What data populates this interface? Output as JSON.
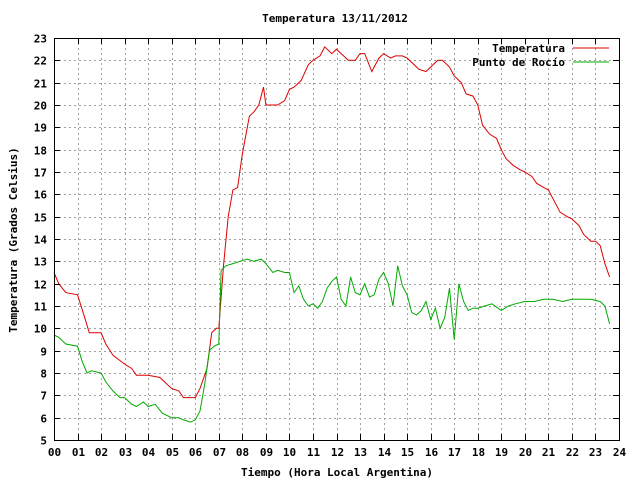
{
  "chart_data": {
    "type": "line",
    "title": "Temperatura 13/11/2012",
    "xlabel": "Tiempo (Hora Local Argentina)",
    "ylabel": "Temperatura (Grados Celsius)",
    "xlim": [
      0,
      24
    ],
    "ylim": [
      5,
      23
    ],
    "x_ticks": [
      "00",
      "01",
      "02",
      "03",
      "04",
      "05",
      "06",
      "07",
      "08",
      "09",
      "10",
      "11",
      "12",
      "13",
      "14",
      "15",
      "16",
      "17",
      "18",
      "19",
      "20",
      "21",
      "22",
      "23",
      "24"
    ],
    "y_ticks": [
      5,
      6,
      7,
      8,
      9,
      10,
      11,
      12,
      13,
      14,
      15,
      16,
      17,
      18,
      19,
      20,
      21,
      22,
      23
    ],
    "grid": true,
    "legend_position": "top-right",
    "series": [
      {
        "name": "Temperatura",
        "color": "#dd0000",
        "x": [
          0,
          0.2,
          0.5,
          1.0,
          1.3,
          1.5,
          2.0,
          2.2,
          2.5,
          3.0,
          3.3,
          3.5,
          4.0,
          4.5,
          5.0,
          5.3,
          5.5,
          5.8,
          6.0,
          6.2,
          6.5,
          6.7,
          6.9,
          7.0,
          7.2,
          7.4,
          7.6,
          7.8,
          8.0,
          8.3,
          8.5,
          8.7,
          8.9,
          9.0,
          9.2,
          9.5,
          9.8,
          10.0,
          10.2,
          10.5,
          10.8,
          11.0,
          11.3,
          11.5,
          11.8,
          12.0,
          12.2,
          12.5,
          12.8,
          13.0,
          13.2,
          13.5,
          13.8,
          14.0,
          14.3,
          14.5,
          14.8,
          15.0,
          15.3,
          15.5,
          15.8,
          16.0,
          16.3,
          16.5,
          16.8,
          17.0,
          17.3,
          17.5,
          17.8,
          18.0,
          18.2,
          18.5,
          18.8,
          19.0,
          19.2,
          19.5,
          19.8,
          20.0,
          20.3,
          20.5,
          20.8,
          21.0,
          21.3,
          21.5,
          21.8,
          22.0,
          22.3,
          22.5,
          22.8,
          23.0,
          23.2,
          23.4,
          23.6
        ],
        "values": [
          12.5,
          12.0,
          11.6,
          11.5,
          10.5,
          9.8,
          9.8,
          9.3,
          8.8,
          8.4,
          8.2,
          7.9,
          7.9,
          7.8,
          7.3,
          7.2,
          6.9,
          6.9,
          6.9,
          7.3,
          8.2,
          9.8,
          10.0,
          10.0,
          12.8,
          15.0,
          16.2,
          16.3,
          17.8,
          19.5,
          19.7,
          20.0,
          20.8,
          20.0,
          20.0,
          20.0,
          20.2,
          20.7,
          20.8,
          21.1,
          21.8,
          22.0,
          22.2,
          22.6,
          22.3,
          22.5,
          22.3,
          22.0,
          22.0,
          22.3,
          22.3,
          21.5,
          22.1,
          22.3,
          22.1,
          22.2,
          22.2,
          22.1,
          21.8,
          21.6,
          21.5,
          21.7,
          22.0,
          22.0,
          21.7,
          21.3,
          21.0,
          20.5,
          20.4,
          20.0,
          19.1,
          18.7,
          18.5,
          18.0,
          17.6,
          17.3,
          17.1,
          17.0,
          16.8,
          16.5,
          16.3,
          16.2,
          15.6,
          15.2,
          15.0,
          14.9,
          14.6,
          14.2,
          13.9,
          13.9,
          13.7,
          12.9,
          12.3
        ]
      },
      {
        "name": "Punto de Rocío",
        "color": "#00aa00",
        "x": [
          0,
          0.2,
          0.5,
          1.0,
          1.2,
          1.4,
          1.6,
          2.0,
          2.2,
          2.5,
          2.8,
          3.0,
          3.3,
          3.5,
          3.8,
          4.0,
          4.3,
          4.6,
          5.0,
          5.3,
          5.5,
          5.8,
          6.0,
          6.2,
          6.4,
          6.6,
          6.8,
          7.0,
          7.1,
          7.3,
          7.6,
          7.9,
          8.2,
          8.5,
          8.8,
          9.0,
          9.3,
          9.5,
          9.8,
          10.0,
          10.2,
          10.4,
          10.6,
          10.8,
          11.0,
          11.2,
          11.4,
          11.6,
          11.8,
          12.0,
          12.2,
          12.4,
          12.6,
          12.8,
          13.0,
          13.2,
          13.4,
          13.6,
          13.8,
          14.0,
          14.2,
          14.4,
          14.6,
          14.8,
          15.0,
          15.2,
          15.4,
          15.6,
          15.8,
          16.0,
          16.2,
          16.4,
          16.6,
          16.8,
          17.0,
          17.2,
          17.4,
          17.6,
          17.8,
          18.0,
          18.3,
          18.6,
          19.0,
          19.3,
          19.6,
          20.0,
          20.4,
          20.8,
          21.2,
          21.6,
          22.0,
          22.4,
          22.8,
          23.2,
          23.4,
          23.6
        ],
        "values": [
          9.7,
          9.6,
          9.3,
          9.2,
          8.5,
          8.0,
          8.1,
          8.0,
          7.6,
          7.2,
          6.9,
          6.9,
          6.6,
          6.5,
          6.7,
          6.5,
          6.6,
          6.2,
          6.0,
          6.0,
          5.9,
          5.8,
          5.9,
          6.3,
          7.5,
          9.0,
          9.2,
          9.3,
          12.6,
          12.8,
          12.9,
          13.0,
          13.1,
          13.0,
          13.1,
          12.9,
          12.5,
          12.6,
          12.5,
          12.5,
          11.6,
          11.9,
          11.3,
          11.0,
          11.1,
          10.9,
          11.2,
          11.8,
          12.1,
          12.3,
          11.3,
          11.0,
          12.3,
          11.6,
          11.5,
          12.0,
          11.4,
          11.5,
          12.2,
          12.5,
          12.0,
          11.0,
          12.8,
          11.9,
          11.5,
          10.7,
          10.6,
          10.8,
          11.2,
          10.4,
          10.9,
          10.0,
          10.5,
          11.8,
          9.5,
          12.0,
          11.2,
          10.8,
          10.9,
          10.9,
          11.0,
          11.1,
          10.8,
          11.0,
          11.1,
          11.2,
          11.2,
          11.3,
          11.3,
          11.2,
          11.3,
          11.3,
          11.3,
          11.2,
          11.0,
          10.2
        ]
      }
    ]
  }
}
